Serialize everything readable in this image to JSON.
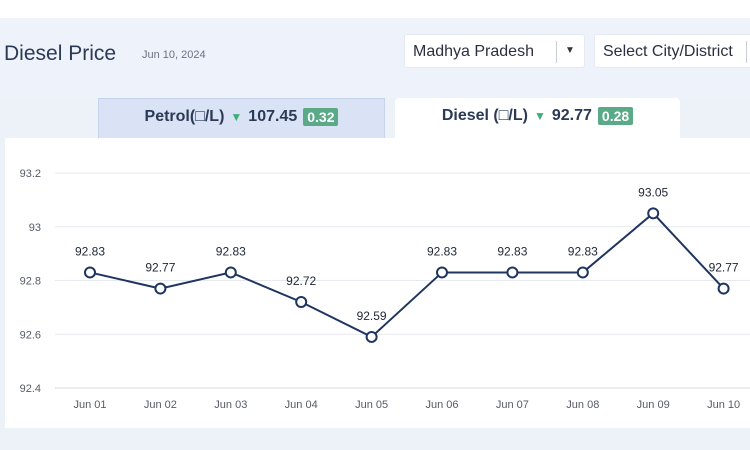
{
  "header": {
    "title": "Diesel Price",
    "date": "Jun 10, 2024",
    "state_select": "Madhya Pradesh",
    "city_select": "Select City/District"
  },
  "tabs": [
    {
      "label": "Petrol(□/L)",
      "value": "107.45",
      "change": "0.32",
      "direction": "down"
    },
    {
      "label": "Diesel (□/L)",
      "value": "92.77",
      "change": "0.28",
      "direction": "down",
      "active": true
    }
  ],
  "icons": {
    "caret": "chevron-down-icon",
    "trend": "triangle-down-icon"
  },
  "colors": {
    "line": "#1f3560",
    "badge": "#5aa987",
    "arrow": "#3fae7a"
  },
  "chart_data": {
    "type": "line",
    "categories": [
      "Jun 01",
      "Jun 02",
      "Jun 03",
      "Jun 04",
      "Jun 05",
      "Jun 06",
      "Jun 07",
      "Jun 08",
      "Jun 09",
      "Jun 10"
    ],
    "values": [
      92.83,
      92.77,
      92.83,
      92.72,
      92.59,
      92.83,
      92.83,
      92.83,
      93.05,
      92.77
    ],
    "data_labels": [
      "92.83",
      "92.77",
      "92.83",
      "92.72",
      "92.59",
      "92.83",
      "92.83",
      "92.83",
      "93.05",
      "92.77"
    ],
    "y_ticks": [
      "92.4",
      "92.6",
      "92.8",
      "93",
      "93.2"
    ],
    "ylim": [
      92.4,
      93.2
    ],
    "grid": true
  }
}
